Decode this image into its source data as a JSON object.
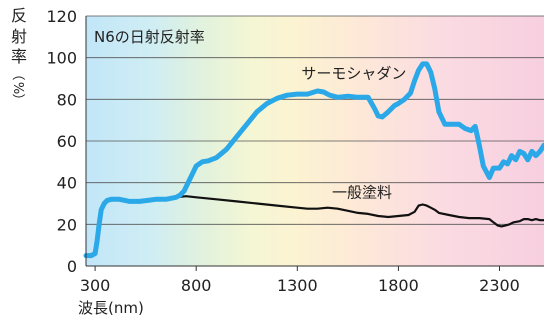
{
  "chart_data": {
    "type": "line",
    "title": "N6の日射反射率",
    "ylabel_chars": [
      "反",
      "射",
      "率",
      "（",
      "%",
      "）"
    ],
    "xlabel": "波長(nm)",
    "xlim": [
      255,
      2520
    ],
    "ylim": [
      0,
      120
    ],
    "x_ticks": [
      300,
      800,
      1300,
      1800,
      2300
    ],
    "y_ticks": [
      0,
      20,
      40,
      60,
      80,
      100,
      120
    ],
    "grid": true,
    "background": "visible spectrum gradient (blue → yellow → pink)",
    "series": [
      {
        "name": "サーモシャダン",
        "color": "#2aa8e8",
        "label_at": {
          "x": 1580,
          "y": 90
        },
        "x": [
          255,
          280,
          300,
          310,
          320,
          330,
          345,
          360,
          380,
          420,
          470,
          520,
          560,
          600,
          650,
          700,
          720,
          740,
          760,
          780,
          800,
          830,
          860,
          900,
          950,
          1000,
          1050,
          1100,
          1150,
          1200,
          1250,
          1300,
          1350,
          1400,
          1430,
          1460,
          1500,
          1550,
          1600,
          1650,
          1680,
          1700,
          1720,
          1750,
          1780,
          1800,
          1830,
          1860,
          1880,
          1900,
          1920,
          1940,
          1960,
          1980,
          2000,
          2030,
          2060,
          2100,
          2130,
          2160,
          2180,
          2200,
          2220,
          2250,
          2270,
          2300,
          2320,
          2340,
          2360,
          2380,
          2400,
          2420,
          2440,
          2460,
          2480,
          2500,
          2520
        ],
        "y": [
          5,
          5,
          6,
          12,
          20,
          27,
          30,
          31.5,
          32,
          32,
          31,
          31,
          31.5,
          32,
          32,
          33,
          34,
          36,
          40,
          44,
          48,
          50,
          50.5,
          52,
          56,
          62,
          68,
          74,
          78,
          80.5,
          82,
          82.5,
          82.5,
          84,
          83.5,
          82,
          81,
          81.5,
          81,
          81,
          76,
          72,
          71.5,
          74,
          77,
          78,
          80,
          83,
          89,
          94,
          97,
          97,
          93,
          85,
          74,
          68,
          68,
          68,
          66,
          65,
          67,
          58,
          48,
          42.5,
          47,
          47,
          50,
          49,
          53,
          51,
          55,
          54,
          51,
          55,
          53,
          55,
          58
        ]
      },
      {
        "name": "一般塗料",
        "color": "#111111",
        "label_at": {
          "x": 1620,
          "y": 33
        },
        "x": [
          255,
          280,
          300,
          310,
          320,
          330,
          345,
          360,
          380,
          420,
          470,
          520,
          560,
          600,
          650,
          700,
          750,
          800,
          850,
          900,
          1000,
          1100,
          1200,
          1300,
          1350,
          1400,
          1450,
          1500,
          1550,
          1600,
          1650,
          1700,
          1750,
          1800,
          1850,
          1880,
          1900,
          1920,
          1940,
          1960,
          1980,
          2000,
          2050,
          2100,
          2150,
          2200,
          2250,
          2270,
          2290,
          2310,
          2330,
          2350,
          2370,
          2400,
          2420,
          2440,
          2460,
          2480,
          2500,
          2520
        ],
        "y": [
          5,
          5,
          6,
          12,
          20,
          27,
          30,
          31.5,
          32,
          32,
          31,
          31.5,
          32,
          32,
          32.5,
          33,
          33.5,
          33,
          32.5,
          32,
          31,
          30,
          29,
          28,
          27.5,
          27.5,
          28,
          27.5,
          26.5,
          25.5,
          25,
          24,
          23.5,
          24,
          24.5,
          26,
          29,
          29.5,
          29,
          28,
          27,
          25.5,
          24.5,
          23.5,
          23,
          23,
          22.5,
          21,
          19.5,
          19,
          19.5,
          20,
          21,
          21.5,
          22.5,
          22.5,
          22,
          22.5,
          22,
          22
        ]
      }
    ]
  }
}
